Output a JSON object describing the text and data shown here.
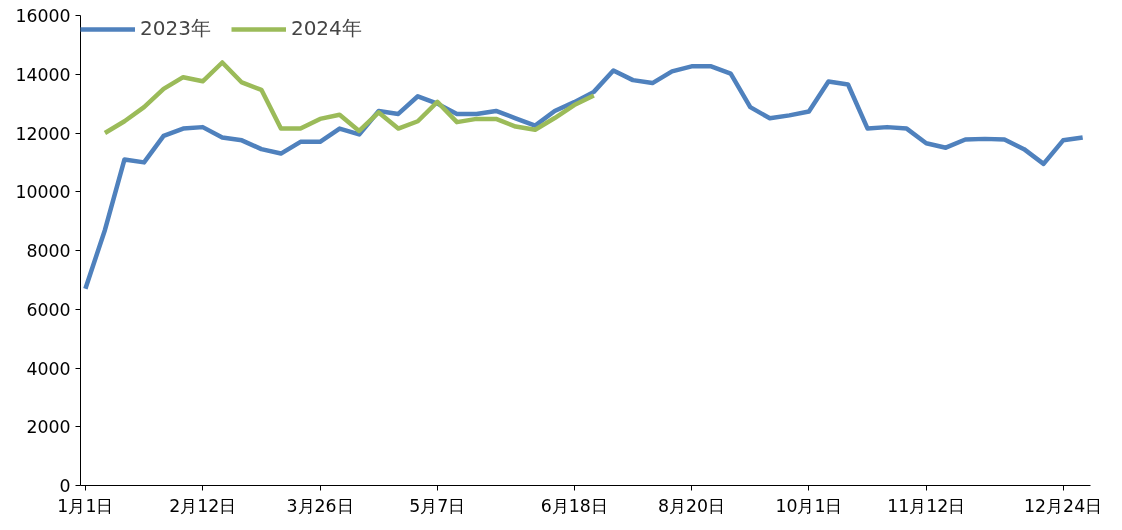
{
  "chart_data": {
    "type": "line",
    "categories": [
      "1月1日",
      null,
      null,
      null,
      null,
      null,
      "2月12日",
      null,
      null,
      null,
      null,
      null,
      "3月26日",
      null,
      null,
      null,
      null,
      null,
      "5月7日",
      null,
      null,
      null,
      null,
      null,
      null,
      "6月18日",
      null,
      null,
      null,
      null,
      null,
      "8月20日",
      null,
      null,
      null,
      null,
      null,
      "10月1日",
      null,
      null,
      null,
      null,
      null,
      "11月12日",
      null,
      null,
      null,
      null,
      null,
      null,
      "12月24日",
      null
    ],
    "ylim": [
      0,
      16000
    ],
    "yticks": [
      0,
      2000,
      4000,
      6000,
      8000,
      10000,
      12000,
      14000,
      16000
    ],
    "legend": "top left",
    "line_style": "solid",
    "series": [
      {
        "name": "2023年",
        "color": "#4f81bd",
        "values": [
          6700,
          8700,
          11100,
          11000,
          11900,
          12150,
          12200,
          11850,
          11750,
          11450,
          11300,
          11700,
          11700,
          12150,
          11950,
          12750,
          12650,
          13250,
          13000,
          12650,
          12650,
          12750,
          12500,
          12250,
          12750,
          13050,
          13400,
          14130,
          13800,
          13700,
          14100,
          14270,
          14270,
          14020,
          12880,
          12500,
          12600,
          12730,
          13750,
          13650,
          12150,
          12200,
          12150,
          11650,
          11500,
          11780,
          11800,
          11780,
          11450,
          10950,
          11750,
          11850
        ]
      },
      {
        "name": "2024年",
        "color": "#9bbb59",
        "values": [
          null,
          12000,
          12400,
          12880,
          13500,
          13900,
          13760,
          14400,
          13720,
          13470,
          12150,
          12150,
          12480,
          12620,
          12070,
          12700,
          12150,
          12400,
          13060,
          12370,
          12480,
          12480,
          12220,
          12110,
          12510,
          12950,
          13280,
          null,
          null,
          null,
          null,
          null,
          null,
          null,
          null,
          null,
          null,
          null,
          null,
          null,
          null,
          null,
          null,
          null,
          null,
          null,
          null,
          null,
          null,
          null,
          null,
          null
        ]
      }
    ]
  }
}
